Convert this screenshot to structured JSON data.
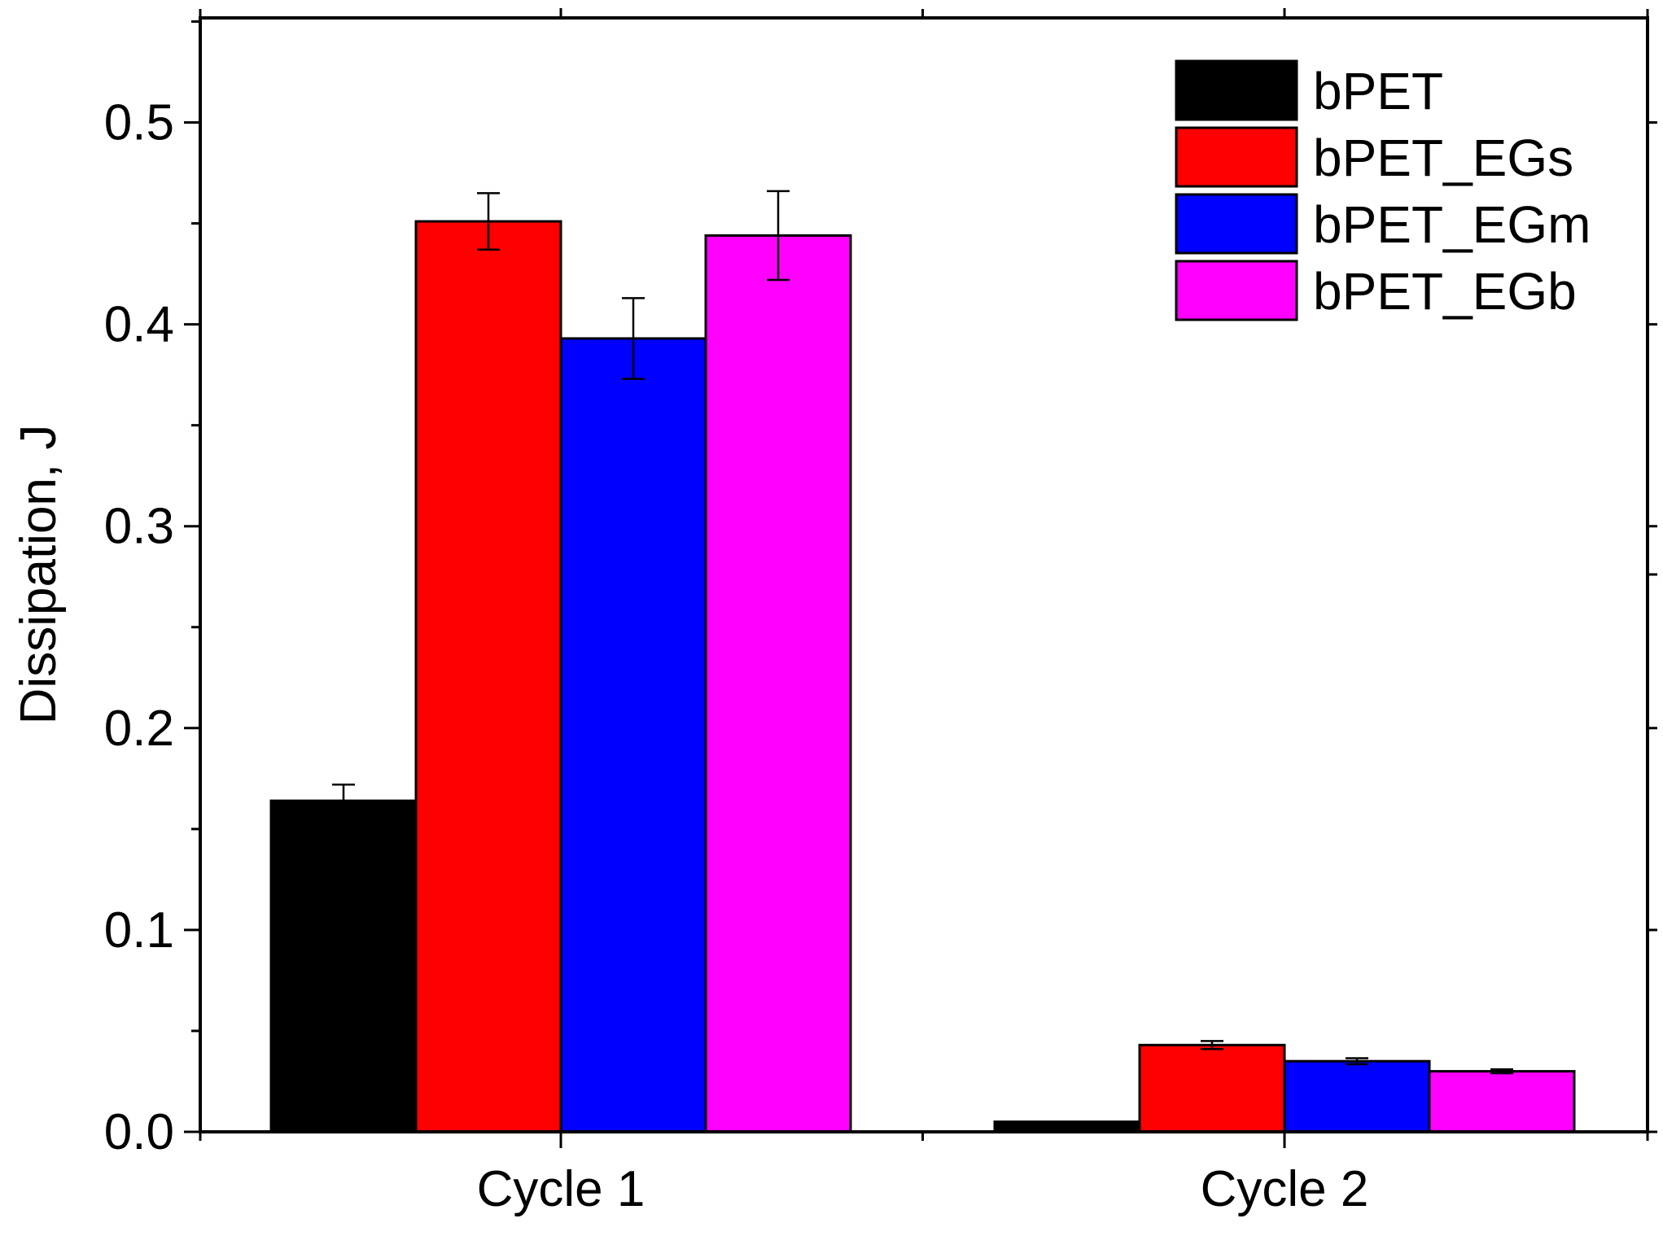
{
  "chart_data": {
    "type": "bar",
    "title": "",
    "xlabel": "",
    "ylabel": "Dissipation, J",
    "ylim": [
      0,
      0.55
    ],
    "yticks": [
      "0.0",
      "0.1",
      "0.2",
      "0.3",
      "0.4",
      "0.5"
    ],
    "categories": [
      "Cycle 1",
      "Cycle 2"
    ],
    "legend_position": "top-right",
    "series": [
      {
        "name": "bPET",
        "color": "#000000",
        "values": [
          0.164,
          0.005
        ],
        "errors": [
          0.008,
          0.0
        ]
      },
      {
        "name": "bPET_EGs",
        "color": "#ff0000",
        "values": [
          0.451,
          0.043
        ],
        "errors": [
          0.014,
          0.002
        ]
      },
      {
        "name": "bPET_EGm",
        "color": "#0000ff",
        "values": [
          0.393,
          0.035
        ],
        "errors": [
          0.02,
          0.0015
        ]
      },
      {
        "name": "bPET_EGb",
        "color": "#ff00ff",
        "values": [
          0.444,
          0.03
        ],
        "errors": [
          0.022,
          0.001
        ]
      }
    ]
  }
}
